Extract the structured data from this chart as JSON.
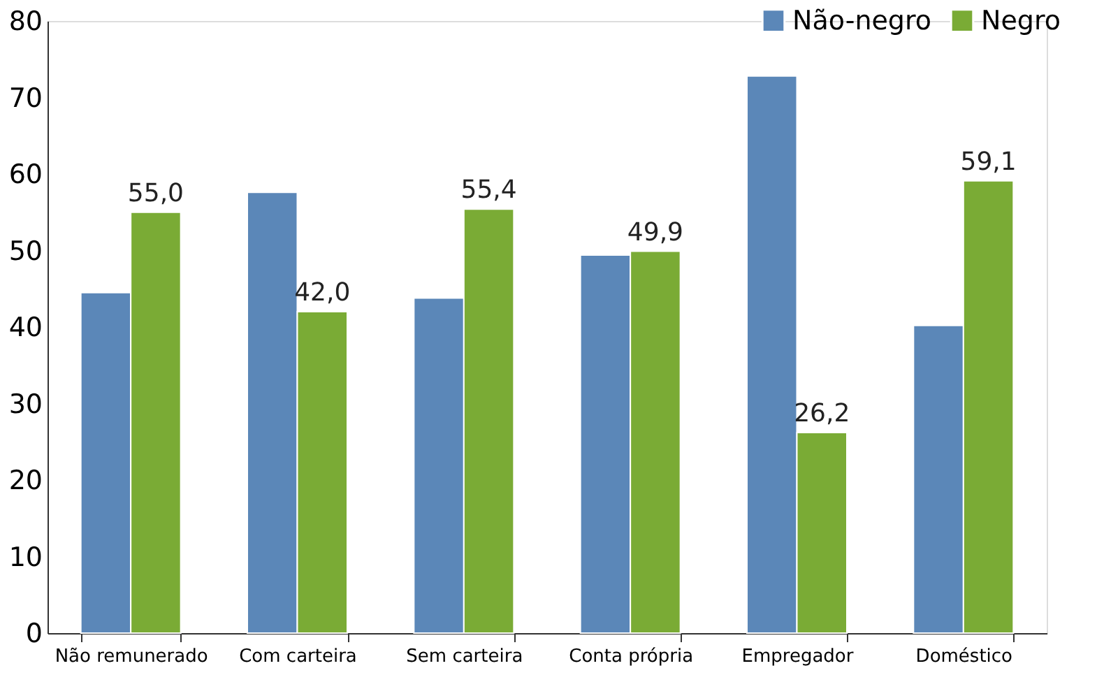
{
  "chart_data": {
    "type": "bar",
    "categories": [
      "Não remunerado",
      "Com carteira",
      "Sem carteira",
      "Conta própria",
      "Empregador",
      "Doméstico"
    ],
    "series": [
      {
        "name": "Não-negro",
        "color": "#5b87b8",
        "values": [
          44.5,
          57.6,
          43.8,
          49.4,
          72.8,
          40.2
        ]
      },
      {
        "name": "Negro",
        "color": "#7aab35",
        "values": [
          55.0,
          42.0,
          55.4,
          49.9,
          26.2,
          59.1
        ],
        "value_labels": [
          "55,0",
          "42,0",
          "55,4",
          "49,9",
          "26,2",
          "59,1"
        ]
      }
    ],
    "ylim": [
      0,
      80
    ],
    "yticks": [
      0,
      10,
      20,
      30,
      40,
      50,
      60,
      70,
      80
    ],
    "grid": false,
    "legend": "top right"
  }
}
